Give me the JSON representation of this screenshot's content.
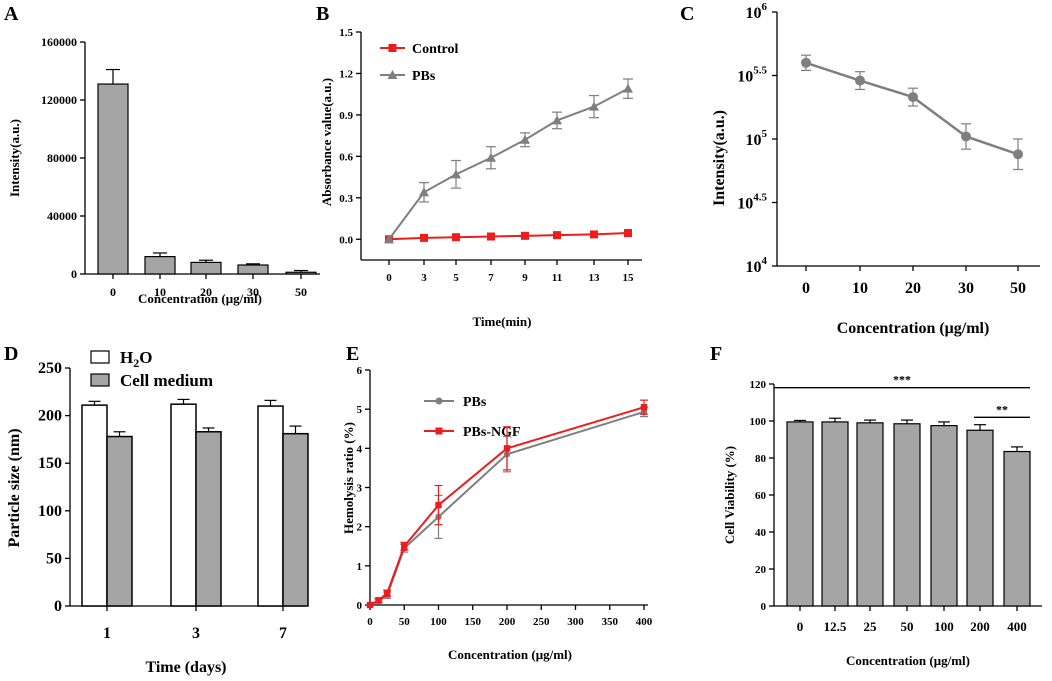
{
  "colors": {
    "bar_gray": "#a5a5a5",
    "line_gray": "#7f7f7f",
    "red": "#ee1c1c",
    "black": "#000000",
    "white": "#ffffff"
  },
  "chart_data": [
    {
      "panel": "A",
      "type": "bar",
      "title": "",
      "xlabel": "Concentration (μg/ml)",
      "ylabel": "Intensity(a.u.)",
      "categories": [
        "0",
        "10",
        "20",
        "30",
        "50"
      ],
      "values": [
        131000,
        12000,
        8000,
        6200,
        1200
      ],
      "errors": [
        10000,
        2500,
        1500,
        800,
        1200
      ],
      "ylim": [
        0,
        160000
      ],
      "yticks": [
        "0",
        "40000",
        "80000",
        "120000",
        "160000"
      ]
    },
    {
      "panel": "B",
      "type": "line",
      "xlabel": "Time(min)",
      "ylabel": "Absorbance value(a.u.)",
      "x": [
        "0",
        "3",
        "5",
        "7",
        "9",
        "11",
        "13",
        "15"
      ],
      "ylim": [
        -0.15,
        1.5
      ],
      "yticks": [
        "0.0",
        "0.3",
        "0.6",
        "0.9",
        "1.2",
        "1.5"
      ],
      "series": [
        {
          "name": "Control",
          "values": [
            0.0,
            0.01,
            0.015,
            0.02,
            0.025,
            0.03,
            0.035,
            0.045
          ],
          "errors": [
            0,
            0,
            0,
            0,
            0,
            0,
            0,
            0
          ],
          "color": "#ee1c1c",
          "marker": "square"
        },
        {
          "name": "PBs",
          "values": [
            0.0,
            0.34,
            0.47,
            0.59,
            0.72,
            0.86,
            0.96,
            1.09
          ],
          "errors": [
            0,
            0.07,
            0.1,
            0.08,
            0.05,
            0.06,
            0.08,
            0.07
          ],
          "color": "#7f7f7f",
          "marker": "triangle"
        }
      ]
    },
    {
      "panel": "C",
      "type": "line",
      "yscale": "log",
      "xlabel": "Concentration (μg/ml)",
      "ylabel": "Intensity(a.u.)",
      "x": [
        "0",
        "10",
        "20",
        "30",
        "50"
      ],
      "series": [
        {
          "name": "Intensity",
          "log10_values": [
            5.6,
            5.46,
            5.33,
            5.02,
            4.88
          ],
          "log10_errors": [
            0.06,
            0.07,
            0.07,
            0.1,
            0.12
          ],
          "color": "#7f7f7f",
          "marker": "circle"
        }
      ],
      "ylim_log10": [
        4,
        6
      ],
      "yticks": [
        {
          "base": "10",
          "exp": "4"
        },
        {
          "base": "10",
          "exp": "4.5"
        },
        {
          "base": "10",
          "exp": "5"
        },
        {
          "base": "10",
          "exp": "5.5"
        },
        {
          "base": "10",
          "exp": "6"
        }
      ]
    },
    {
      "panel": "D",
      "type": "bar",
      "xlabel": "Time (days)",
      "ylabel": "Particle size (nm)",
      "categories": [
        "1",
        "3",
        "7"
      ],
      "ylim": [
        0,
        250
      ],
      "yticks": [
        "0",
        "50",
        "100",
        "150",
        "200",
        "250"
      ],
      "series": [
        {
          "name_base": "H",
          "name_sub": "2",
          "name_tail": "O",
          "values": [
            211,
            212,
            210
          ],
          "errors": [
            4,
            5,
            6
          ],
          "fill": "#ffffff"
        },
        {
          "name": "Cell medium",
          "values": [
            178,
            183,
            181
          ],
          "errors": [
            5,
            4,
            8
          ],
          "fill": "#a5a5a5"
        }
      ]
    },
    {
      "panel": "E",
      "type": "line",
      "xlabel": "Concentration (μg/ml)",
      "ylabel": "Hemolysis ratio (%)",
      "x": [
        0,
        12.5,
        25,
        50,
        100,
        200,
        400
      ],
      "xticks": [
        "0",
        "50",
        "100",
        "150",
        "200",
        "250",
        "300",
        "350",
        "400"
      ],
      "ylim": [
        0,
        6
      ],
      "yticks": [
        "0",
        "1",
        "2",
        "3",
        "4",
        "5",
        "6"
      ],
      "series": [
        {
          "name": "PBs",
          "values": [
            0,
            0.1,
            0.25,
            1.45,
            2.25,
            3.85,
            4.93
          ],
          "errors": [
            0,
            0.05,
            0.08,
            0.1,
            0.55,
            0.45,
            0.12
          ],
          "color": "#7f7f7f"
        },
        {
          "name": "PBs-NGF",
          "values": [
            0,
            0.12,
            0.3,
            1.5,
            2.55,
            4.0,
            5.05
          ],
          "errors": [
            0,
            0.05,
            0.08,
            0.1,
            0.5,
            0.55,
            0.18
          ],
          "color": "#ee1c1c"
        }
      ]
    },
    {
      "panel": "F",
      "type": "bar",
      "xlabel": "Concentration (μg/ml)",
      "ylabel": "Cell Viability (%)",
      "categories": [
        "0",
        "12.5",
        "25",
        "50",
        "100",
        "200",
        "400"
      ],
      "values": [
        99.5,
        99.5,
        99,
        98.5,
        97.5,
        95,
        83.5
      ],
      "errors": [
        0.8,
        2,
        1.5,
        2,
        2,
        3,
        2.5
      ],
      "ylim": [
        0,
        120
      ],
      "yticks": [
        "0",
        "20",
        "40",
        "60",
        "80",
        "100",
        "120"
      ],
      "significance": [
        {
          "label": "***",
          "from": 0,
          "to": 6,
          "y": 118
        },
        {
          "label": "**",
          "from": 5,
          "to": 6,
          "y": 102
        }
      ]
    }
  ]
}
